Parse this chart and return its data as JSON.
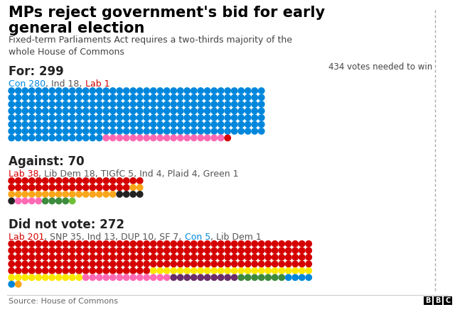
{
  "title": "MPs reject government's bid for early\ngeneral election",
  "subtitle": "Fixed-term Parliaments Act requires a two-thirds majority of the\nwhole House of Commons",
  "source": "Source: House of Commons",
  "threshold_label": "434 votes needed to win",
  "sections": [
    {
      "label": "For: 299",
      "legend_parts": [
        {
          "text": "Con 280",
          "color": "#0087dc"
        },
        {
          "text": ", Ind 18, ",
          "color": "#555555"
        },
        {
          "text": "Lab 1",
          "color": "#d50000"
        }
      ],
      "dot_groups": [
        {
          "color": "#0087dc",
          "count": 280
        },
        {
          "color": "#ff69b4",
          "count": 18
        },
        {
          "color": "#d50000",
          "count": 1
        }
      ],
      "dots_per_row": 38
    },
    {
      "label": "Against: 70",
      "legend_parts": [
        {
          "text": "Lab 38",
          "color": "#d50000"
        },
        {
          "text": ", Lib Dem 18, TIGfC 5, Ind 4, Plaid 4, Green 1",
          "color": "#555555"
        }
      ],
      "dot_groups": [
        {
          "color": "#d50000",
          "count": 38
        },
        {
          "color": "#FAA61A",
          "count": 18
        },
        {
          "color": "#222222",
          "count": 5
        },
        {
          "color": "#ff69b4",
          "count": 4
        },
        {
          "color": "#3d8b3d",
          "count": 4
        },
        {
          "color": "#6dc036",
          "count": 1
        }
      ],
      "dots_per_row": 20
    },
    {
      "label": "Did not vote: 272",
      "legend_parts": [
        {
          "text": "Lab 201",
          "color": "#d50000"
        },
        {
          "text": ", SNP 35, Ind 13, DUP 10, SF 7, ",
          "color": "#555555"
        },
        {
          "text": "Con 5",
          "color": "#0087dc"
        },
        {
          "text": ", Lib Dem 1",
          "color": "#555555"
        }
      ],
      "dot_groups": [
        {
          "color": "#d50000",
          "count": 201
        },
        {
          "color": "#FFE800",
          "count": 35
        },
        {
          "color": "#ff69b4",
          "count": 13
        },
        {
          "color": "#6B2D6B",
          "count": 10
        },
        {
          "color": "#3d8b3d",
          "count": 7
        },
        {
          "color": "#0087dc",
          "count": 5
        },
        {
          "color": "#FAA61A",
          "count": 1
        }
      ],
      "dots_per_row": 45
    }
  ],
  "bg_color": "#ffffff",
  "title_color": "#000000",
  "label_color": "#222222"
}
